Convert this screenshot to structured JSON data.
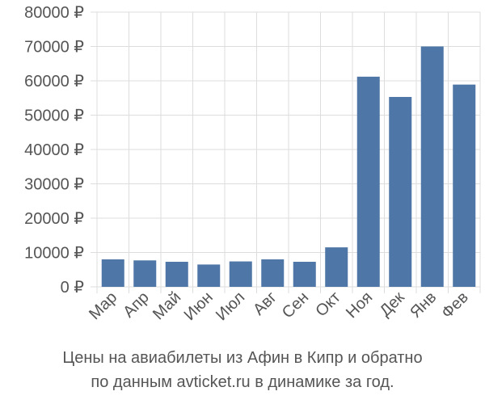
{
  "chart_data": {
    "type": "bar",
    "categories": [
      "Мар",
      "Апр",
      "Май",
      "Июн",
      "Июл",
      "Авг",
      "Сен",
      "Окт",
      "Ноя",
      "Дек",
      "Янв",
      "Фев"
    ],
    "values": [
      8000,
      7700,
      7300,
      6500,
      7400,
      8000,
      7300,
      11500,
      61200,
      55300,
      70000,
      58900
    ],
    "y_ticks": [
      "0 ₽",
      "10000 ₽",
      "20000 ₽",
      "30000 ₽",
      "40000 ₽",
      "50000 ₽",
      "60000 ₽",
      "70000 ₽",
      "80000 ₽"
    ],
    "ylim": [
      0,
      80000
    ],
    "title": "",
    "xlabel": "",
    "ylabel": "",
    "grid": true,
    "bar_color": "#4e76a6",
    "grid_color": "#dddddd"
  },
  "caption": {
    "line1": "Цены на авиабилеты из Афин в Кипр и обратно",
    "line2": "по данным avticket.ru в динамике за год."
  }
}
